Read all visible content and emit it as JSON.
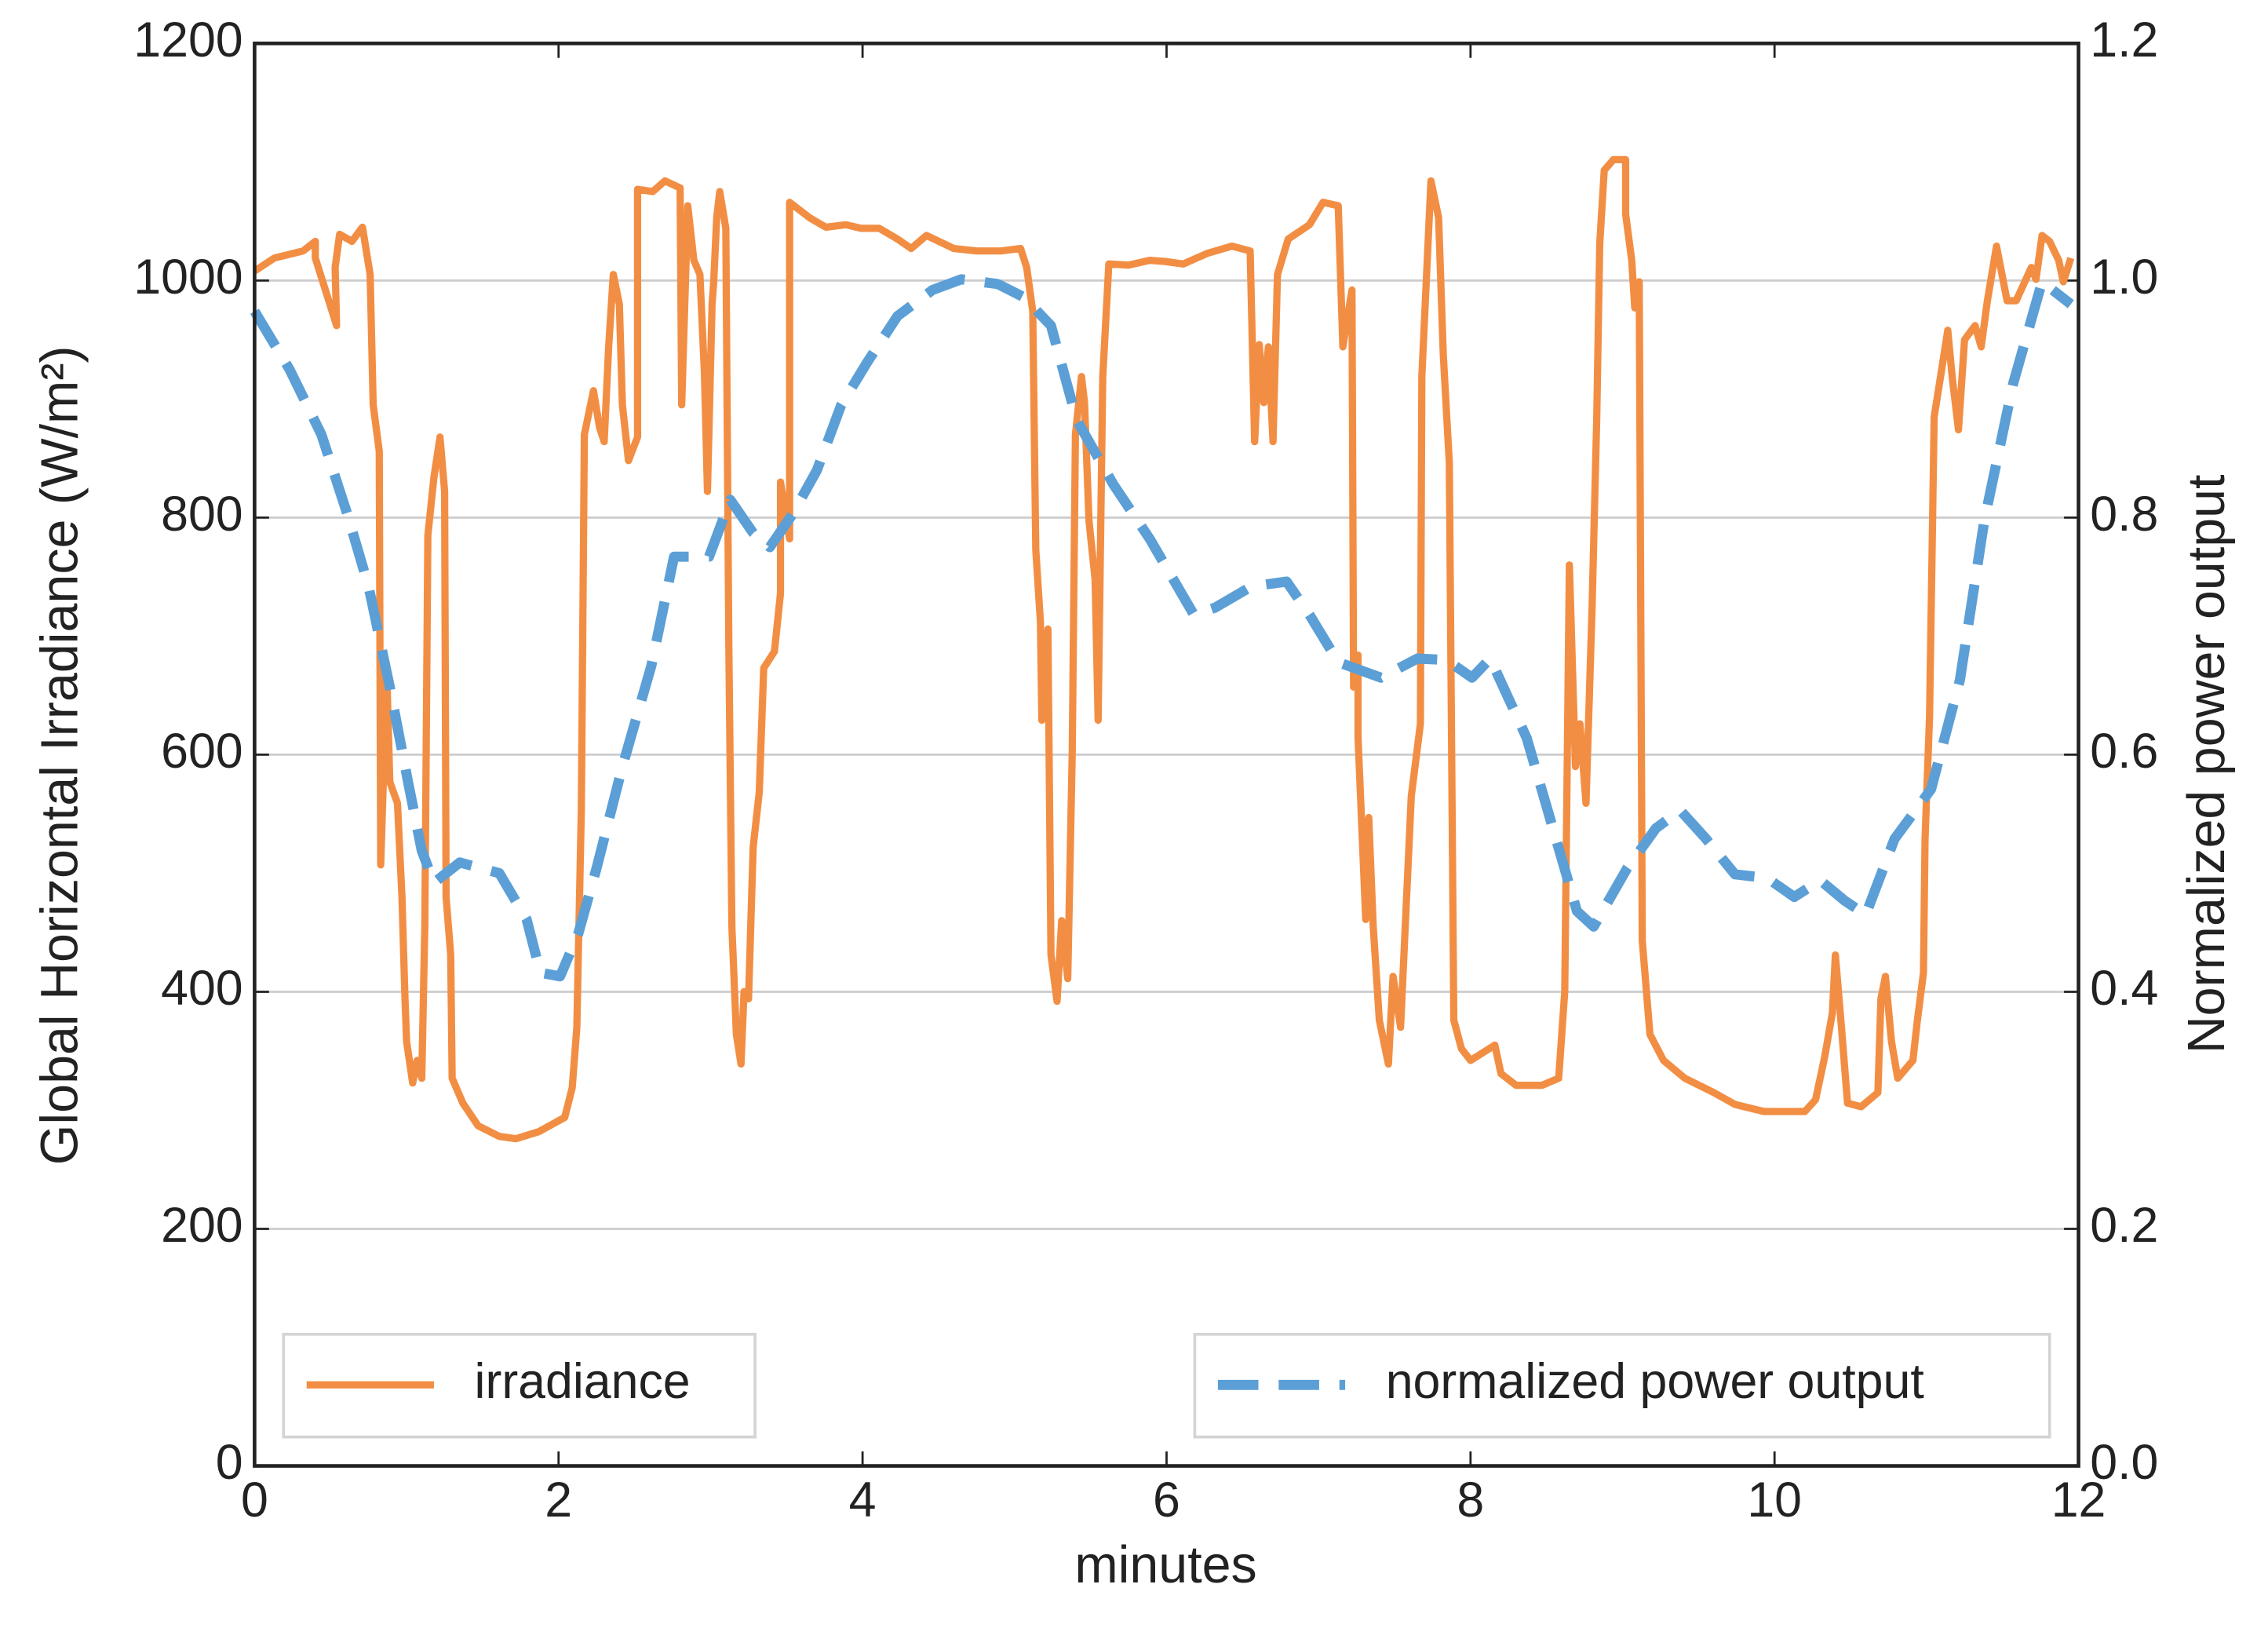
{
  "chart_data": {
    "type": "line",
    "x_label": "minutes",
    "y_label": "Global Horizontal Irradiance (W/m²)",
    "y2_label": "Normalized power output",
    "xlim": [
      0,
      12
    ],
    "xticks": [
      0,
      2,
      4,
      6,
      8,
      10,
      12
    ],
    "ylim": [
      0,
      1200
    ],
    "yticks": [
      0,
      200,
      400,
      600,
      800,
      1000,
      1200
    ],
    "y2lim": [
      0,
      1.2
    ],
    "y2ticks": [
      {
        "value": 0,
        "label": "0.0"
      },
      0.2,
      0.4,
      0.6,
      0.8,
      {
        "value": 1,
        "label": "1.0"
      },
      1.2
    ],
    "grid": true,
    "series": [
      {
        "name": "irradiance",
        "color": "#f28e44",
        "dash": false,
        "legend_loc": "lower left",
        "x": [
          0,
          0.13,
          0.32,
          0.4,
          0.4,
          0.54,
          0.53,
          0.56,
          0.64,
          0.71,
          0.76,
          0.78,
          0.82,
          0.83,
          0.87,
          0.89,
          0.94,
          0.97,
          0.99,
          1.0,
          1.04,
          1.07,
          1.1,
          1.12,
          1.14,
          1.18,
          1.22,
          1.25,
          1.26,
          1.29,
          1.3,
          1.37,
          1.47,
          1.61,
          1.72,
          1.87,
          2.04,
          2.09,
          2.12,
          2.15,
          2.17,
          2.23,
          2.27,
          2.3,
          2.33,
          2.36,
          2.4,
          2.42,
          2.46,
          2.52,
          2.52,
          2.62,
          2.7,
          2.8,
          2.81,
          2.85,
          2.89,
          2.93,
          2.96,
          2.98,
          3.01,
          3.02,
          3.04,
          3.06,
          3.1,
          3.12,
          3.14,
          3.17,
          3.2,
          3.22,
          3.25,
          3.28,
          3.32,
          3.35,
          3.42,
          3.46,
          3.46,
          3.52,
          3.52,
          3.65,
          3.73,
          3.76,
          3.89,
          3.99,
          4.11,
          4.23,
          4.32,
          4.42,
          4.6,
          4.75,
          4.91,
          5.04,
          5.08,
          5.12,
          5.14,
          5.17,
          5.18,
          5.22,
          5.24,
          5.28,
          5.31,
          5.35,
          5.38,
          5.4,
          5.44,
          5.46,
          5.49,
          5.53,
          5.55,
          5.58,
          5.62,
          5.75,
          5.89,
          5.99,
          6.11,
          6.27,
          6.43,
          6.55,
          6.58,
          6.61,
          6.64,
          6.67,
          6.7,
          6.73,
          6.8,
          6.94,
          7.03,
          7.13,
          7.16,
          7.19,
          7.22,
          7.23,
          7.26,
          7.26,
          7.31,
          7.33,
          7.36,
          7.4,
          7.46,
          7.49,
          7.54,
          7.61,
          7.67,
          7.68,
          7.74,
          7.79,
          7.82,
          7.86,
          7.89,
          7.94,
          8.0,
          8.16,
          8.2,
          8.3,
          8.47,
          8.58,
          8.62,
          8.65,
          8.69,
          8.72,
          8.76,
          8.8,
          8.83,
          8.85,
          8.88,
          8.94,
          9.02,
          9.02,
          9.06,
          9.08,
          9.11,
          9.13,
          9.18,
          9.27,
          9.41,
          9.6,
          9.74,
          9.93,
          10.2,
          10.27,
          10.33,
          10.38,
          10.4,
          10.44,
          10.48,
          10.57,
          10.68,
          10.7,
          10.73,
          10.77,
          10.81,
          10.91,
          10.94,
          10.98,
          10.99,
          11.02,
          11.05,
          11.1,
          11.14,
          11.17,
          11.21,
          11.25,
          11.32,
          11.36,
          11.4,
          11.46,
          11.53,
          11.59,
          11.69,
          11.72,
          11.76,
          11.81,
          11.87,
          11.9,
          11.95
        ],
        "values": [
          1008,
          1019,
          1025,
          1033,
          1019,
          962,
          1011,
          1039,
          1033,
          1045,
          1005,
          895,
          856,
          507,
          669,
          577,
          559,
          480,
          394,
          358,
          323,
          342,
          327,
          455,
          785,
          834,
          868,
          822,
          480,
          431,
          327,
          306,
          287,
          278,
          276,
          282,
          294,
          319,
          370,
          553,
          870,
          907,
          876,
          864,
          944,
          1005,
          980,
          895,
          848,
          868,
          1077,
          1075,
          1084,
          1078,
          895,
          1063,
          1017,
          1005,
          922,
          822,
          980,
          998,
          1053,
          1075,
          1044,
          690,
          455,
          364,
          339,
          400,
          394,
          522,
          568,
          673,
          687,
          736,
          830,
          782,
          1066,
          1053,
          1047,
          1045,
          1047,
          1044,
          1044,
          1035,
          1027,
          1038,
          1027,
          1025,
          1025,
          1027,
          1011,
          974,
          773,
          712,
          629,
          706,
          431,
          392,
          460,
          411,
          602,
          870,
          919,
          897,
          797,
          748,
          629,
          919,
          1014,
          1013,
          1017,
          1016,
          1014,
          1023,
          1029,
          1025,
          864,
          946,
          897,
          944,
          864,
          1005,
          1035,
          1047,
          1066,
          1063,
          944,
          968,
          992,
          657,
          684,
          614,
          461,
          547,
          455,
          376,
          339,
          413,
          370,
          565,
          626,
          919,
          1084,
          1053,
          938,
          846,
          376,
          352,
          342,
          355,
          331,
          321,
          321,
          327,
          400,
          760,
          590,
          626,
          559,
          724,
          883,
          1031,
          1093,
          1102,
          1102,
          1056,
          1017,
          977,
          999,
          443,
          364,
          342,
          327,
          315,
          305,
          299,
          299,
          309,
          345,
          382,
          431,
          370,
          306,
          303,
          315,
          394,
          413,
          358,
          327,
          342,
          376,
          416,
          529,
          632,
          885,
          925,
          958,
          917,
          874,
          950,
          962,
          944,
          983,
          1029,
          983,
          983,
          1011,
          1001,
          1038,
          1033,
          1017,
          999,
          1019
        ]
      },
      {
        "name": "normalized power output",
        "color": "#5b9fd6",
        "dash": true,
        "axis": "y2",
        "legend_loc": "lower right",
        "x": [
          0,
          0.23,
          0.44,
          0.61,
          0.75,
          0.89,
          1.01,
          1.1,
          1.18,
          1.35,
          1.61,
          1.79,
          1.88,
          2.01,
          2.13,
          2.25,
          2.42,
          2.61,
          2.76,
          2.99,
          3.13,
          3.28,
          3.39,
          3.54,
          3.7,
          3.86,
          4.03,
          4.23,
          4.46,
          4.65,
          4.89,
          5.06,
          5.24,
          5.41,
          5.65,
          5.89,
          6.18,
          6.32,
          6.56,
          6.79,
          6.94,
          7.13,
          7.41,
          7.65,
          7.84,
          8.01,
          8.13,
          8.37,
          8.53,
          8.7,
          8.81,
          9.03,
          9.22,
          9.38,
          9.55,
          9.74,
          9.95,
          10.13,
          10.3,
          10.46,
          10.6,
          10.79,
          11.03,
          11.22,
          11.38,
          11.57,
          11.76,
          11.95
        ],
        "values": [
          0.974,
          0.925,
          0.87,
          0.803,
          0.742,
          0.657,
          0.577,
          0.519,
          0.492,
          0.509,
          0.5,
          0.461,
          0.416,
          0.413,
          0.449,
          0.504,
          0.59,
          0.675,
          0.767,
          0.767,
          0.815,
          0.787,
          0.775,
          0.803,
          0.84,
          0.895,
          0.931,
          0.97,
          0.992,
          1.001,
          0.997,
          0.986,
          0.962,
          0.882,
          0.828,
          0.782,
          0.718,
          0.724,
          0.742,
          0.746,
          0.718,
          0.678,
          0.665,
          0.681,
          0.68,
          0.665,
          0.681,
          0.614,
          0.543,
          0.468,
          0.455,
          0.504,
          0.538,
          0.553,
          0.529,
          0.499,
          0.496,
          0.48,
          0.494,
          0.477,
          0.465,
          0.529,
          0.571,
          0.663,
          0.797,
          0.913,
          0.999,
          0.98
        ]
      }
    ]
  }
}
